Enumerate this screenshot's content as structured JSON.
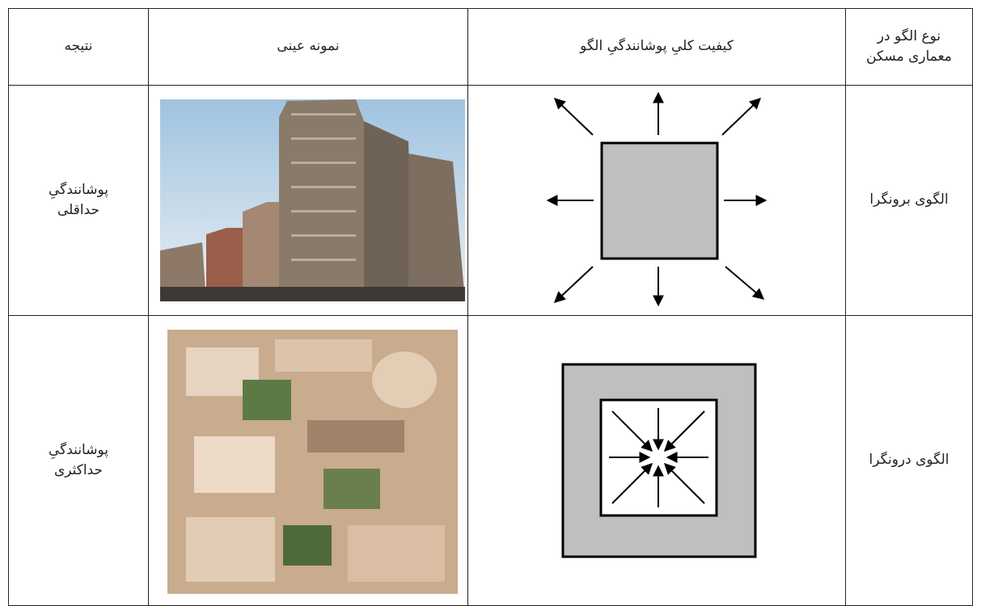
{
  "table": {
    "headers": [
      "نتیجه",
      "نمونه عینی",
      "کیفیت کلیِ پوشانندگیِ الگو",
      "نوع الگو در معماری مسکن"
    ],
    "rows": [
      {
        "type": "الگوی برونگرا",
        "result": "پوشانندگیِ حداقلی"
      },
      {
        "type": "الگوی درونگرا",
        "result": "پوشانندگیِ حداکثری"
      }
    ]
  }
}
